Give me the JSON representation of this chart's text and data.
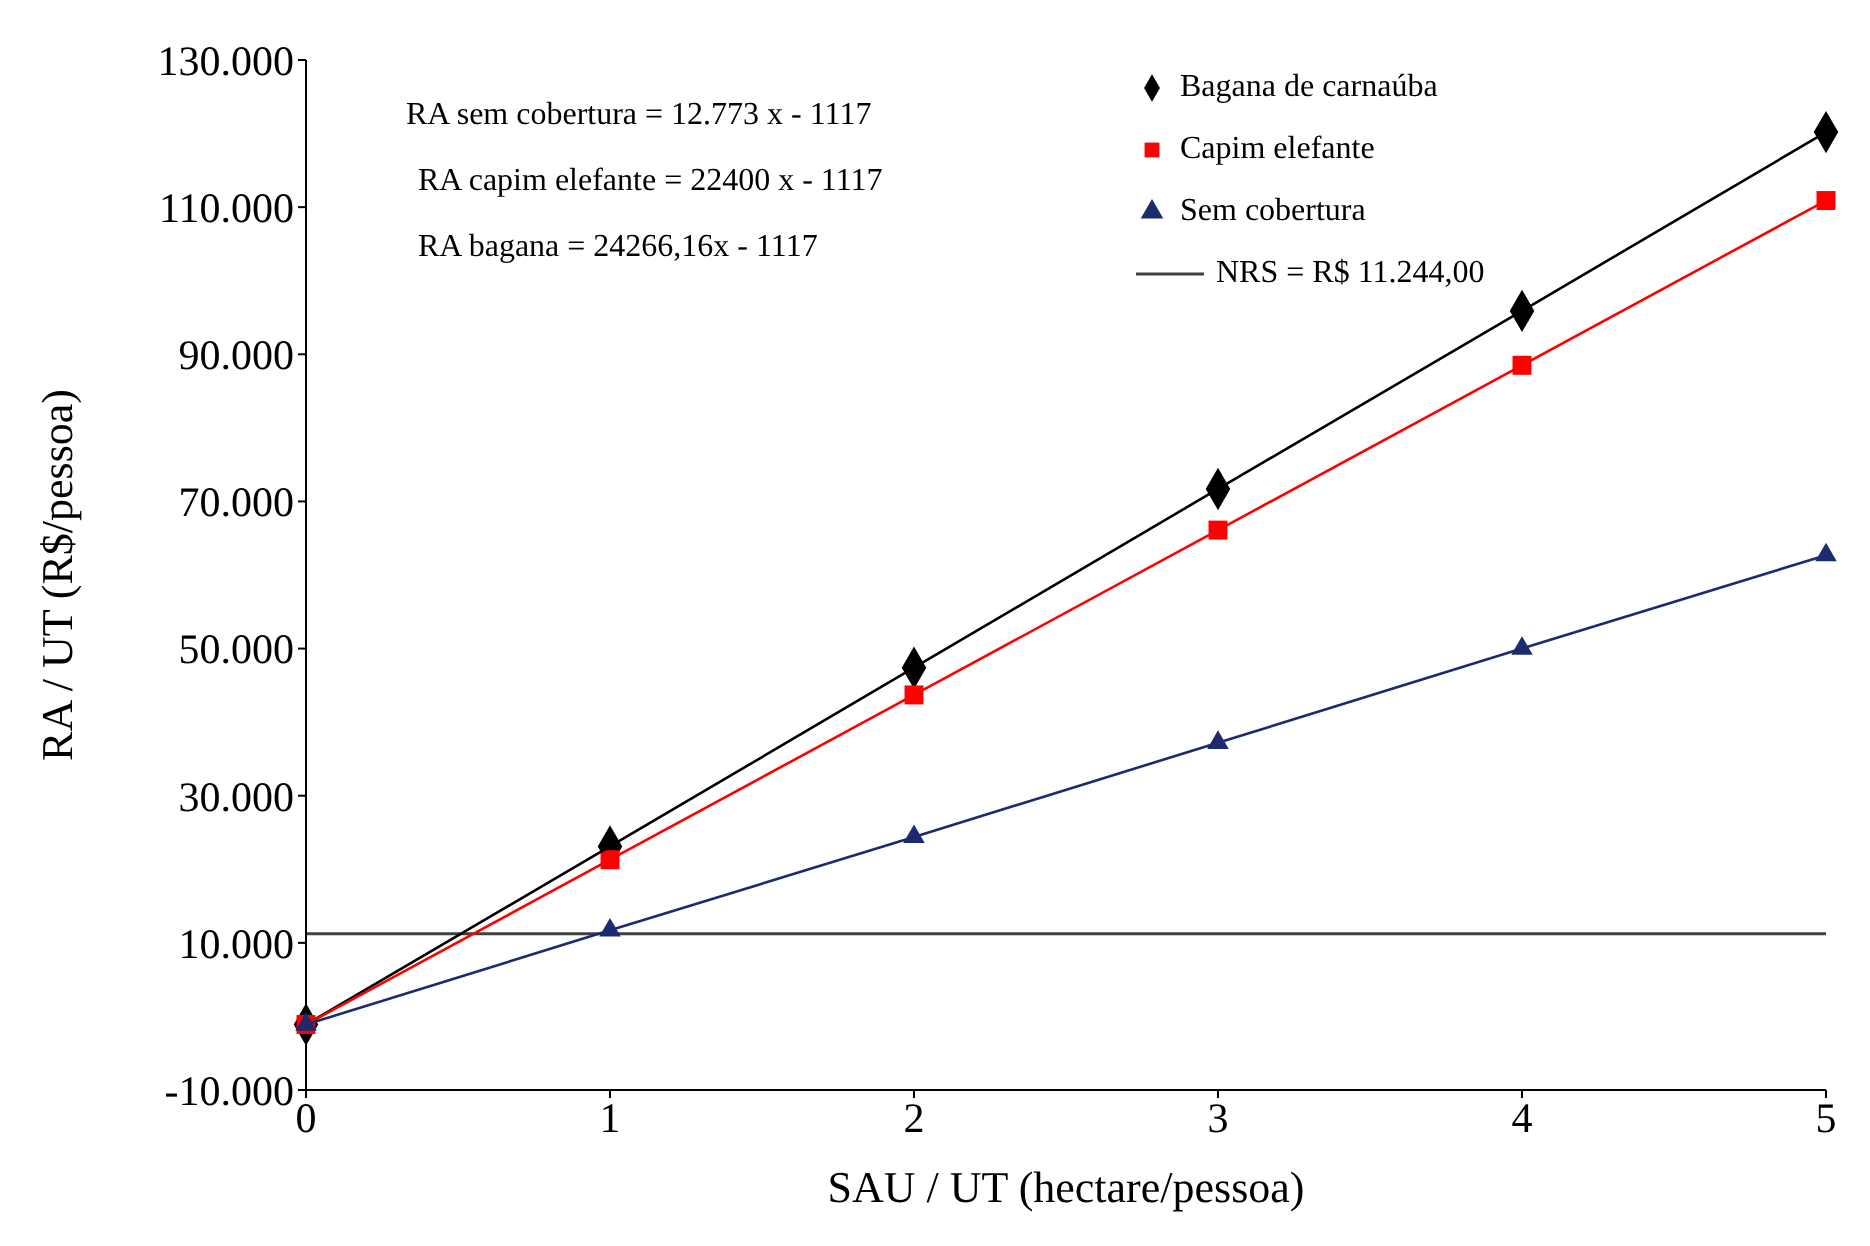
{
  "chart_data": {
    "type": "line",
    "xlabel": "SAU / UT (hectare/pessoa)",
    "ylabel": "RA / UT (R$/pessoa)",
    "x": [
      0,
      1,
      2,
      3,
      4,
      5
    ],
    "series": [
      {
        "name": "Bagana de carnaúba",
        "color": "#000000",
        "marker": "diamond",
        "values": [
          -1100,
          23100,
          47400,
          71700,
          95900,
          120200
        ]
      },
      {
        "name": "Capim elefante",
        "color": "#ff0000",
        "marker": "square",
        "values": [
          -1100,
          21300,
          43700,
          66100,
          88500,
          110900
        ]
      },
      {
        "name": "Sem cobertura",
        "color": "#1c2a6e",
        "marker": "triangle",
        "values": [
          -1100,
          11700,
          24400,
          37200,
          50000,
          62700
        ]
      }
    ],
    "ref_lines": [
      {
        "axis": "y",
        "value": 11244,
        "label": "NRS = R$ 11.244,00",
        "color": "#404040"
      }
    ],
    "annotations": [
      "RA sem cobertura = 12.773 x - 1117",
      "RA capim elefante  = 22400 x - 1117",
      "RA bagana = 24266,16x - 1117"
    ],
    "xlim": [
      0,
      5
    ],
    "xticks": [
      0,
      1,
      2,
      3,
      4,
      5
    ],
    "ylim": [
      -10000,
      130000
    ],
    "yticks": [
      {
        "value": -10000,
        "label": "-10.000"
      },
      {
        "value": 10000,
        "label": "10.000"
      },
      {
        "value": 30000,
        "label": "30.000"
      },
      {
        "value": 50000,
        "label": "50.000"
      },
      {
        "value": 70000,
        "label": "70.000"
      },
      {
        "value": 90000,
        "label": "90.000"
      },
      {
        "value": 110000,
        "label": "110.000"
      },
      {
        "value": 130000,
        "label": "130.000"
      }
    ],
    "grid": false,
    "legend": "top right"
  }
}
